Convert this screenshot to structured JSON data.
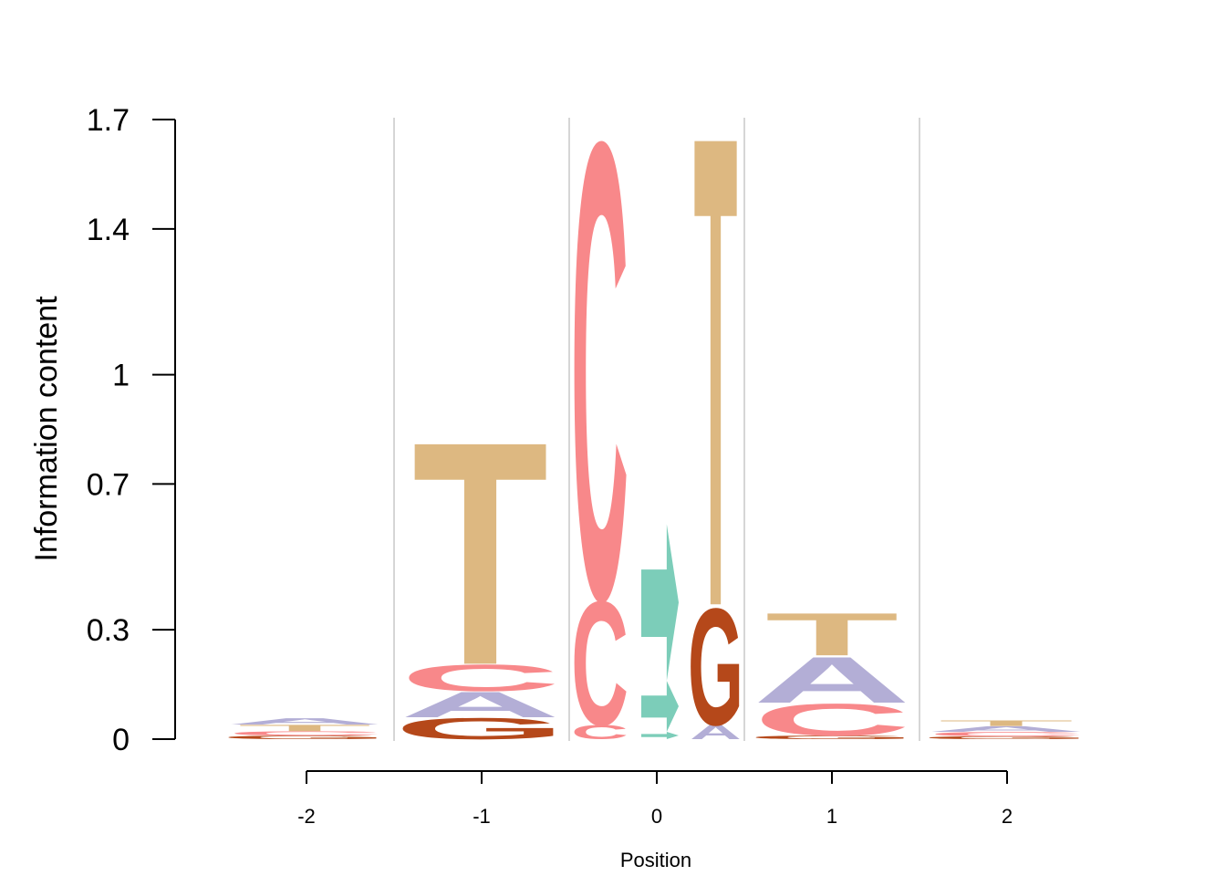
{
  "chart_data": {
    "type": "sequence-logo",
    "xlabel": "Position",
    "ylabel": "Information content",
    "ylim": [
      0,
      1.7
    ],
    "y_ticks": [
      {
        "value": 0,
        "label": "0"
      },
      {
        "value": 0.3,
        "label": "0.3"
      },
      {
        "value": 0.7,
        "label": "0.7"
      },
      {
        "value": 1,
        "label": "1"
      },
      {
        "value": 1.4,
        "label": "1.4"
      },
      {
        "value": 1.7,
        "label": "1.7"
      }
    ],
    "x_ticks": [
      "-2",
      "-1",
      "0",
      "1",
      "2"
    ],
    "colors": {
      "A": "#b3aed6",
      "C": "#f8888a",
      "G": "#b5481a",
      "T": "#ddb881",
      "arrow": "#7ccdb9",
      "separator": "#c8c8c8",
      "axis": "#000000"
    },
    "columns": [
      {
        "sub": 0,
        "stack": [
          {
            "symbol": "G",
            "height": 0.01
          },
          {
            "symbol": "C",
            "height": 0.012
          },
          {
            "symbol": "T",
            "height": 0.018
          },
          {
            "symbol": "A",
            "height": 0.018
          }
        ]
      },
      {
        "sub": 1,
        "stack": [
          {
            "symbol": "G",
            "height": 0.06
          },
          {
            "symbol": "A",
            "height": 0.072
          },
          {
            "symbol": "C",
            "height": 0.075
          },
          {
            "symbol": "T",
            "height": 0.63
          }
        ]
      },
      {
        "sub": 2,
        "stack": [
          {
            "symbol": "C",
            "height": 0.04
          },
          {
            "symbol": "C",
            "height": 0.35
          },
          {
            "symbol": "C",
            "height": 1.29
          }
        ]
      },
      {
        "sub": 3,
        "stack": [
          {
            "symbol": "arrow",
            "height": 0.02
          },
          {
            "symbol": "arrow",
            "height": 0.14
          },
          {
            "symbol": "arrow",
            "height": 0.43
          }
        ]
      },
      {
        "sub": 4,
        "stack": [
          {
            "symbol": "A",
            "height": 0.04
          },
          {
            "symbol": "G",
            "height": 0.33
          },
          {
            "symbol": "T",
            "height": 1.33
          }
        ]
      },
      {
        "sub": 5,
        "stack": [
          {
            "symbol": "G",
            "height": 0.01
          },
          {
            "symbol": "C",
            "height": 0.09
          },
          {
            "symbol": "A",
            "height": 0.13
          },
          {
            "symbol": "T",
            "height": 0.12
          }
        ]
      },
      {
        "sub": 6,
        "stack": [
          {
            "symbol": "G",
            "height": 0.008
          },
          {
            "symbol": "C",
            "height": 0.012
          },
          {
            "symbol": "A",
            "height": 0.016
          },
          {
            "symbol": "T",
            "height": 0.016
          }
        ]
      }
    ]
  }
}
